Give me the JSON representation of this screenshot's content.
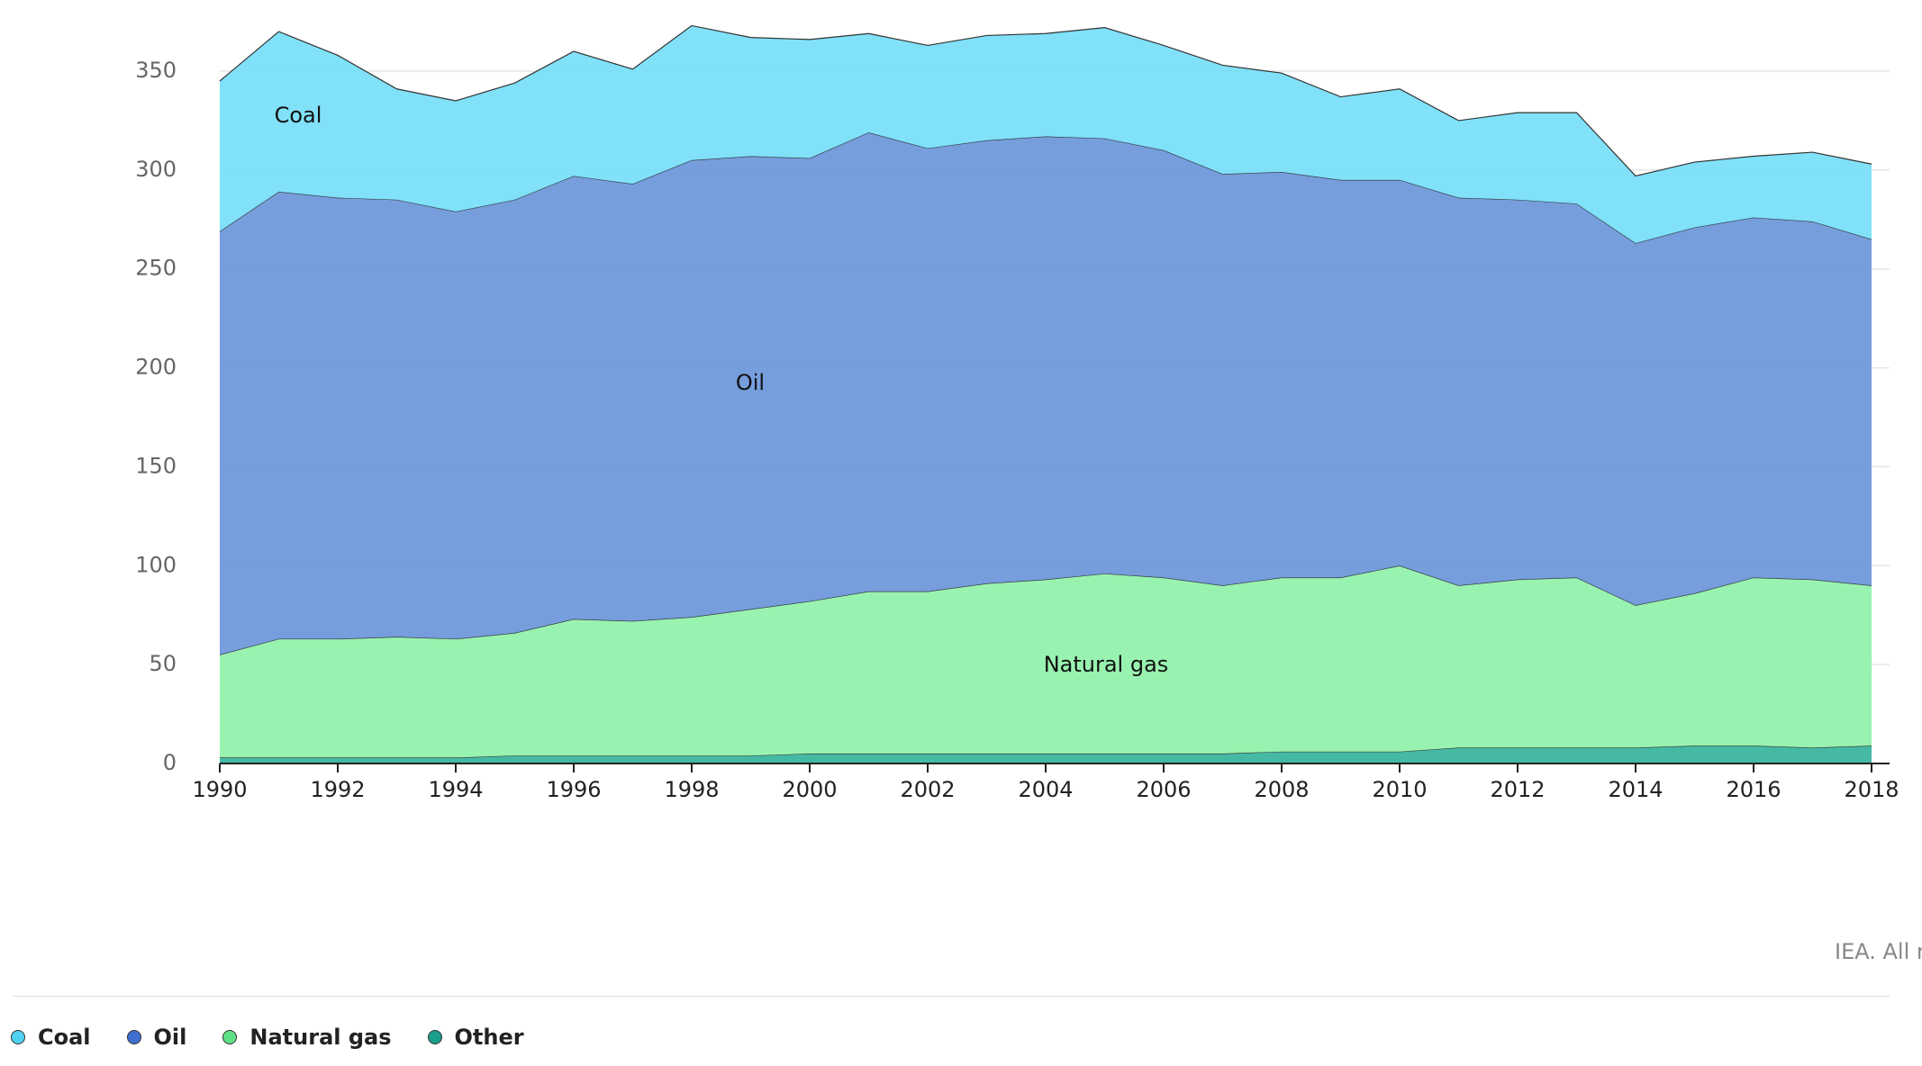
{
  "chart_data": {
    "type": "stacked-area",
    "x": [
      1990,
      1991,
      1992,
      1993,
      1994,
      1995,
      1996,
      1997,
      1998,
      1999,
      2000,
      2001,
      2002,
      2003,
      2004,
      2005,
      2006,
      2007,
      2008,
      2009,
      2010,
      2011,
      2012,
      2013,
      2014,
      2015,
      2016,
      2017,
      2018
    ],
    "series": [
      {
        "name": "Coal",
        "color": "#7adff9",
        "legend_color": "#4fd1f0",
        "values": [
          76,
          81,
          72,
          56,
          56,
          59,
          63,
          58,
          68,
          60,
          60,
          50,
          52,
          53,
          52,
          56,
          53,
          55,
          50,
          42,
          46,
          39,
          44,
          46,
          34,
          33,
          31,
          35,
          38
        ]
      },
      {
        "name": "Oil",
        "color": "#7099da",
        "legend_color": "#3f6fd0",
        "values": [
          214,
          226,
          223,
          221,
          216,
          219,
          224,
          221,
          231,
          229,
          224,
          232,
          224,
          224,
          224,
          220,
          216,
          208,
          205,
          201,
          195,
          196,
          192,
          189,
          183,
          185,
          182,
          181,
          175
        ]
      },
      {
        "name": "Natural gas",
        "color": "#93f2ac",
        "legend_color": "#5fe086",
        "values": [
          52,
          60,
          60,
          61,
          60,
          62,
          69,
          68,
          70,
          74,
          77,
          82,
          82,
          86,
          88,
          91,
          89,
          85,
          88,
          88,
          94,
          82,
          85,
          86,
          72,
          77,
          85,
          85,
          81
        ]
      },
      {
        "name": "Other",
        "color": "#3cb5a0",
        "legend_color": "#1a9e8c",
        "values": [
          3,
          3,
          3,
          3,
          3,
          4,
          4,
          4,
          4,
          4,
          5,
          5,
          5,
          5,
          5,
          5,
          5,
          5,
          6,
          6,
          6,
          8,
          8,
          8,
          8,
          9,
          9,
          8,
          9
        ]
      }
    ],
    "xlim": [
      1990,
      2018
    ],
    "xticks": [
      1990,
      1992,
      1994,
      1996,
      1998,
      2000,
      2002,
      2004,
      2006,
      2008,
      2010,
      2012,
      2014,
      2016,
      2018
    ],
    "ylim": [
      0,
      350
    ],
    "yticks": [
      0,
      50,
      100,
      150,
      200,
      250,
      300,
      350
    ],
    "grid": true,
    "source": "IEA. All rights reserved."
  }
}
